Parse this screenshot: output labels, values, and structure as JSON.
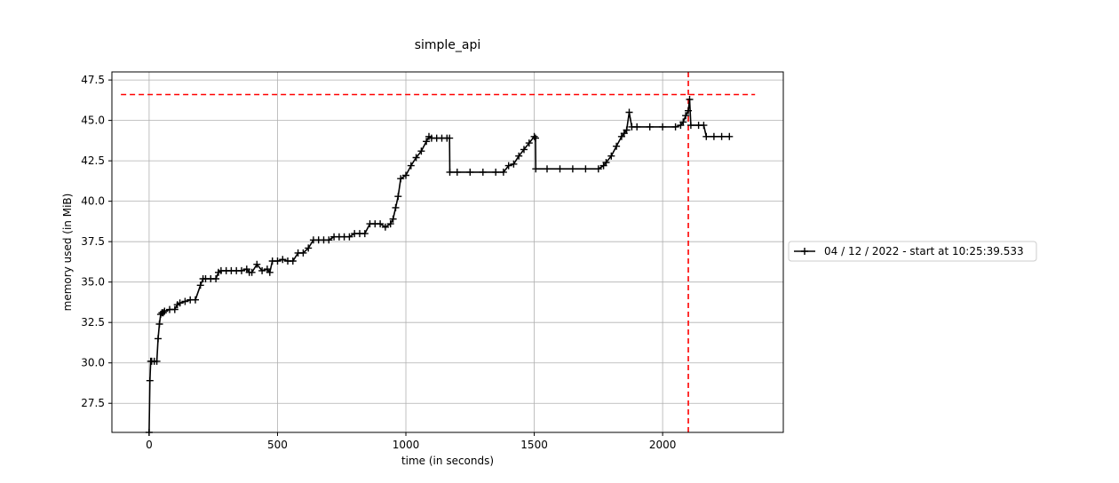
{
  "chart_data": {
    "type": "line",
    "title": "simple_api",
    "xlabel": "time (in seconds)",
    "ylabel": "memory used (in MiB)",
    "xlim": [
      -145,
      2470
    ],
    "ylim": [
      25.7,
      48.0
    ],
    "x_ticks": [
      0,
      500,
      1000,
      1500,
      2000
    ],
    "x_tick_labels": [
      "0",
      "500",
      "1000",
      "1500",
      "2000"
    ],
    "y_ticks": [
      27.5,
      30.0,
      32.5,
      35.0,
      37.5,
      40.0,
      42.5,
      45.0,
      47.5
    ],
    "y_tick_labels": [
      "27.5",
      "30.0",
      "32.5",
      "35.0",
      "37.5",
      "40.0",
      "42.5",
      "45.0",
      "47.5"
    ],
    "grid": true,
    "legend_placement": "outside right",
    "series": [
      {
        "name": "04 / 12 / 2022 - start at 10:25:39.533",
        "color": "#000000",
        "marker": "+",
        "x": [
          0,
          3,
          6,
          10,
          20,
          30,
          35,
          40,
          45,
          50,
          55,
          60,
          80,
          100,
          110,
          120,
          140,
          160,
          180,
          200,
          210,
          220,
          240,
          260,
          270,
          280,
          300,
          320,
          340,
          360,
          380,
          390,
          400,
          420,
          440,
          460,
          470,
          480,
          500,
          520,
          540,
          560,
          580,
          600,
          620,
          640,
          660,
          680,
          700,
          720,
          740,
          760,
          780,
          800,
          820,
          840,
          860,
          880,
          900,
          920,
          940,
          950,
          960,
          970,
          980,
          1000,
          1020,
          1040,
          1060,
          1080,
          1090,
          1100,
          1120,
          1140,
          1160,
          1170,
          1171,
          1200,
          1250,
          1300,
          1350,
          1380,
          1400,
          1420,
          1440,
          1460,
          1480,
          1500,
          1505,
          1506,
          1550,
          1600,
          1650,
          1700,
          1750,
          1770,
          1780,
          1800,
          1820,
          1840,
          1850,
          1860,
          1870,
          1880,
          1900,
          1950,
          2000,
          2050,
          2070,
          2080,
          2090,
          2100,
          2105,
          2110,
          2140,
          2160,
          2170,
          2200,
          2230,
          2260
        ],
        "y": [
          25.7,
          28.9,
          30.1,
          30.1,
          30.1,
          30.1,
          31.5,
          32.4,
          33.0,
          33.1,
          33.1,
          33.2,
          33.3,
          33.3,
          33.6,
          33.7,
          33.8,
          33.9,
          33.9,
          34.8,
          35.2,
          35.2,
          35.2,
          35.2,
          35.6,
          35.7,
          35.7,
          35.7,
          35.7,
          35.7,
          35.8,
          35.6,
          35.6,
          36.1,
          35.7,
          35.8,
          35.6,
          36.3,
          36.3,
          36.4,
          36.3,
          36.3,
          36.8,
          36.8,
          37.1,
          37.6,
          37.6,
          37.6,
          37.6,
          37.8,
          37.8,
          37.8,
          37.8,
          38.0,
          38.0,
          38.0,
          38.6,
          38.6,
          38.6,
          38.4,
          38.6,
          38.9,
          39.6,
          40.3,
          41.4,
          41.6,
          42.2,
          42.7,
          43.1,
          43.7,
          44.0,
          43.9,
          43.9,
          43.9,
          43.9,
          43.9,
          41.8,
          41.8,
          41.8,
          41.8,
          41.8,
          41.8,
          42.2,
          42.3,
          42.8,
          43.2,
          43.6,
          44.0,
          43.9,
          42.0,
          42.0,
          42.0,
          42.0,
          42.0,
          42.0,
          42.2,
          42.4,
          42.8,
          43.4,
          44.0,
          44.2,
          44.4,
          45.5,
          44.6,
          44.6,
          44.6,
          44.6,
          44.6,
          44.7,
          44.9,
          45.3,
          45.6,
          46.3,
          44.7,
          44.7,
          44.7,
          44.0,
          44.0,
          44.0,
          44.0
        ]
      }
    ],
    "peak_lines": {
      "color": "#ff0000",
      "horizontal_y": 46.6,
      "horizontal_x_range": [
        -110,
        2360
      ],
      "vertical_x": 2100
    }
  }
}
